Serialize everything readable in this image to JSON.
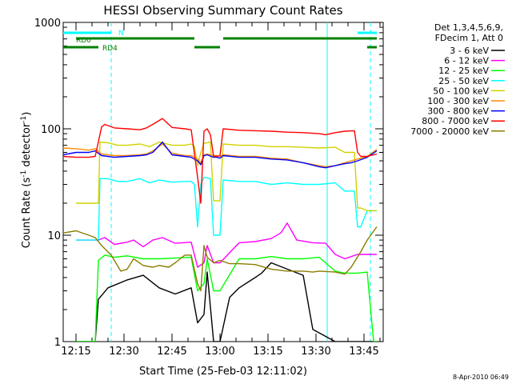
{
  "chart_data": {
    "type": "line",
    "title": "HESSI Observing Summary Count Rates",
    "xlabel": "Start Time (25-Feb-03 12:11:02)",
    "ylabel_parts": [
      "Count Rate (s",
      "-1",
      " detector",
      "-1",
      ")"
    ],
    "y_scale": "log",
    "ylim": [
      1,
      1000
    ],
    "xlim_minutes_after_1211": [
      0,
      100
    ],
    "x_ticks": [
      {
        "label": "12:15",
        "value": 4
      },
      {
        "label": "12:30",
        "value": 19
      },
      {
        "label": "12:45",
        "value": 34
      },
      {
        "label": "13:00",
        "value": 49
      },
      {
        "label": "13:15",
        "value": 64
      },
      {
        "label": "13:30",
        "value": 79
      },
      {
        "label": "13:45",
        "value": 94
      }
    ],
    "y_ticks": [
      {
        "label": "1",
        "value": 1
      },
      {
        "label": "10",
        "value": 10
      },
      {
        "label": "100",
        "value": 100
      },
      {
        "label": "1000",
        "value": 1000
      }
    ],
    "legend_header": [
      "Det 1,3,4,5,6,9,",
      "FDecim 1, Att 0"
    ],
    "legend_placement": "right",
    "series": [
      {
        "name": "3 - 6 keV",
        "color": "#000000",
        "x": [
          4,
          10,
          11,
          14,
          20,
          25,
          30,
          35,
          40,
          42,
          44,
          45,
          47,
          49,
          52,
          55,
          60,
          62,
          65,
          70,
          75,
          78,
          85,
          88,
          90,
          92,
          94,
          96,
          98
        ],
        "y": [
          1,
          1,
          2.5,
          3.2,
          3.8,
          4.2,
          3.2,
          2.8,
          3.2,
          1.5,
          1.8,
          4.5,
          1,
          1,
          2.6,
          3.2,
          4,
          4.4,
          5.5,
          4.8,
          4.2,
          1.3,
          1,
          1,
          1,
          1,
          1,
          1,
          1
        ]
      },
      {
        "name": "6 - 12 keV",
        "color": "#ff00ff",
        "x": [
          4,
          11,
          13,
          16,
          20,
          22,
          25,
          28,
          31,
          35,
          40,
          42,
          44,
          45,
          47,
          49,
          55,
          60,
          65,
          68,
          70,
          73,
          78,
          82,
          85,
          88,
          90,
          92,
          95,
          98
        ],
        "y": [
          9,
          9,
          9.5,
          8.2,
          8.6,
          9,
          7.8,
          9,
          9.5,
          8.4,
          8.6,
          5,
          5.5,
          8,
          5.5,
          5.5,
          8.5,
          8.7,
          9.3,
          10.5,
          13,
          9,
          8.5,
          8.4,
          6.6,
          6,
          6.3,
          6.6,
          6.6,
          6.6
        ]
      },
      {
        "name": "12 - 25 keV",
        "color": "#00ff00",
        "x": [
          4,
          10,
          11,
          13,
          16,
          20,
          25,
          30,
          35,
          40,
          42,
          44,
          45,
          47,
          49,
          55,
          60,
          65,
          70,
          75,
          80,
          85,
          88,
          90,
          92,
          95,
          97,
          98
        ],
        "y": [
          1,
          1,
          5.8,
          6.5,
          6.2,
          6.4,
          6,
          6,
          6.1,
          6.2,
          3,
          3.5,
          6,
          3,
          3,
          6,
          6,
          6.3,
          6,
          6,
          6.2,
          4.6,
          4.4,
          4.4,
          4.4,
          4.5,
          1,
          1
        ]
      },
      {
        "name": "25 - 50 keV",
        "color": "#00ffff",
        "x": [
          4,
          11,
          11.5,
          14,
          17,
          20,
          24,
          27,
          30,
          34,
          38,
          40,
          41,
          42,
          43,
          44,
          46,
          47,
          48,
          49,
          50,
          55,
          60,
          65,
          70,
          75,
          80,
          85,
          88,
          91,
          92,
          93,
          95,
          98
        ],
        "y": [
          9,
          9,
          34,
          34,
          32,
          32,
          34,
          31,
          33,
          31.5,
          32,
          32,
          30,
          12,
          30,
          35,
          34,
          10,
          10,
          10,
          33,
          32,
          32,
          30,
          31,
          30,
          30,
          31,
          26,
          26,
          12,
          12,
          17,
          17
        ]
      },
      {
        "name": "50 - 100 keV",
        "color": "#d2d200",
        "x": [
          4,
          11,
          11.5,
          14,
          17,
          20,
          24,
          27,
          30,
          34,
          38,
          40,
          41,
          42,
          43,
          44,
          46,
          47,
          48,
          49,
          50,
          55,
          60,
          65,
          70,
          75,
          80,
          85,
          88,
          91,
          92,
          93,
          95,
          98
        ],
        "y": [
          20,
          20,
          75,
          74,
          70,
          70,
          72,
          68,
          75,
          70,
          70,
          72,
          68,
          45,
          60,
          73,
          75,
          21,
          21,
          21,
          72,
          70,
          70,
          68,
          68,
          67,
          66,
          67,
          60,
          60,
          18,
          18,
          17,
          17
        ]
      },
      {
        "name": "100 - 300 keV",
        "color": "#ff8c00",
        "x": [
          0,
          4,
          8,
          10,
          12,
          16,
          20,
          24,
          26,
          28,
          31,
          34,
          38,
          40,
          42,
          43,
          44,
          45,
          47,
          48,
          49,
          50,
          55,
          60,
          65,
          70,
          75,
          80,
          82,
          85,
          88,
          90,
          92,
          95,
          98
        ],
        "y": [
          66,
          65,
          63,
          65,
          58,
          56,
          56,
          57,
          58,
          62,
          72,
          59,
          56,
          56,
          52,
          48,
          57,
          58,
          56,
          56,
          55,
          57,
          55,
          55,
          53,
          52,
          48,
          45,
          44,
          45,
          48,
          50,
          52,
          55,
          64
        ]
      },
      {
        "name": "300 - 800 keV",
        "color": "#0000ff",
        "x": [
          0,
          4,
          8,
          10,
          12,
          16,
          20,
          24,
          26,
          28,
          31,
          34,
          38,
          40,
          42,
          43,
          44,
          45,
          47,
          48,
          49,
          50,
          55,
          60,
          65,
          70,
          75,
          80,
          82,
          85,
          88,
          90,
          92,
          95,
          98
        ],
        "y": [
          57,
          60,
          60,
          62,
          56,
          54,
          55,
          56,
          57,
          60,
          75,
          57,
          55,
          54,
          50,
          46,
          56,
          57,
          54,
          54,
          53,
          56,
          54,
          54,
          52,
          51,
          48,
          44,
          43,
          45,
          47,
          48,
          50,
          54,
          62
        ]
      },
      {
        "name": "800 - 7000 keV",
        "color": "#ff0000",
        "x": [
          0,
          4,
          8,
          10,
          12,
          13,
          16,
          20,
          24,
          26,
          28,
          31,
          34,
          38,
          40,
          42,
          43,
          44,
          45,
          46,
          47,
          48,
          49,
          50,
          55,
          60,
          65,
          70,
          75,
          80,
          82,
          85,
          88,
          91,
          92,
          93,
          95,
          98
        ],
        "y": [
          55,
          54,
          54,
          55,
          104,
          110,
          102,
          100,
          98,
          102,
          110,
          125,
          103,
          100,
          98,
          35,
          20,
          95,
          100,
          88,
          55,
          55,
          56,
          100,
          97,
          96,
          95,
          93,
          92,
          90,
          88,
          92,
          95,
          96,
          60,
          55,
          55,
          58
        ]
      },
      {
        "name": "7000 - 20000 keV",
        "color": "#8b7d00",
        "x": [
          0,
          4,
          8,
          10,
          12,
          15,
          18,
          20,
          22,
          25,
          28,
          30,
          33,
          35,
          38,
          40,
          42,
          43,
          44,
          45,
          47,
          49,
          52,
          55,
          60,
          65,
          70,
          75,
          78,
          80,
          85,
          88,
          90,
          93,
          95,
          98
        ],
        "y": [
          10.5,
          11,
          10,
          9.5,
          8,
          6.5,
          4.6,
          4.8,
          6,
          5.2,
          5,
          5.2,
          5,
          5.5,
          6.5,
          6.5,
          3.5,
          3,
          8,
          6.2,
          5.5,
          5.8,
          5.4,
          5.4,
          5.3,
          4.8,
          4.6,
          4.6,
          4.5,
          4.6,
          4.5,
          4.3,
          5,
          7,
          9,
          12
        ]
      }
    ],
    "time_bars": [
      {
        "label": "N",
        "color": "#00ffff",
        "row": "top",
        "segments": [
          [
            0,
            15
          ],
          [
            92,
            98
          ]
        ]
      },
      {
        "label": "RD0",
        "color": "#008000",
        "row": "upper",
        "segments": [
          [
            4,
            41
          ],
          [
            50,
            98
          ]
        ]
      },
      {
        "label": "RD4",
        "color": "#008000",
        "row": "lower",
        "segments": [
          [
            -1,
            11
          ],
          [
            41,
            49
          ],
          [
            95,
            98
          ]
        ]
      }
    ],
    "vlines": [
      {
        "x": 15,
        "color": "#00ffff",
        "style": "dashed"
      },
      {
        "x": 82.5,
        "color": "#00ffff",
        "style": "solid"
      },
      {
        "x": 96,
        "color": "#00ffff",
        "style": "dashed"
      }
    ],
    "grid": false
  },
  "footer": {
    "timestamp": "8-Apr-2010 06:49"
  }
}
